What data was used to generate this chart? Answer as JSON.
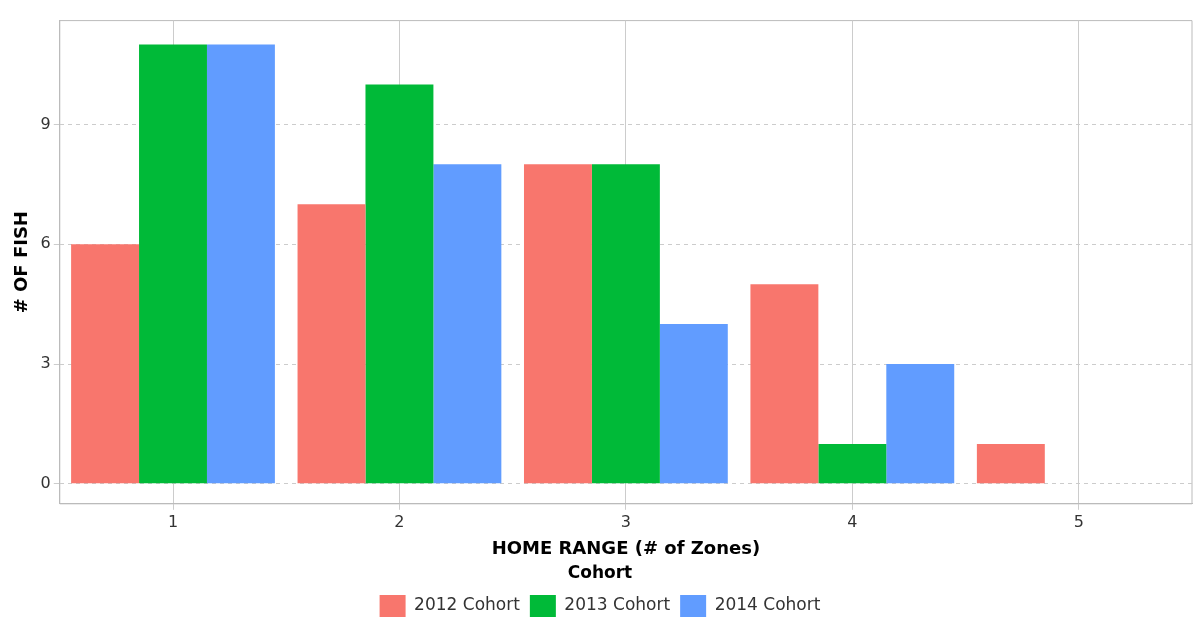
{
  "chart_data": {
    "type": "bar",
    "xlabel": "HOME RANGE (# of Zones)",
    "ylabel": "# OF FISH",
    "legend_title": "Cohort",
    "categories": [
      "1",
      "2",
      "3",
      "4",
      "5"
    ],
    "series": [
      {
        "name": "2012 Cohort",
        "color": "#f8766d",
        "values": [
          6,
          7,
          8,
          5,
          1
        ]
      },
      {
        "name": "2013 Cohort",
        "color": "#00ba38",
        "values": [
          11,
          10,
          8,
          1,
          0
        ]
      },
      {
        "name": "2014 Cohort",
        "color": "#619cff",
        "values": [
          11,
          8,
          4,
          3,
          0
        ]
      }
    ],
    "ylim": [
      -0.5,
      11.6
    ],
    "yticks": [
      0,
      3,
      6,
      9
    ],
    "grid": true,
    "legend": "bottom"
  }
}
